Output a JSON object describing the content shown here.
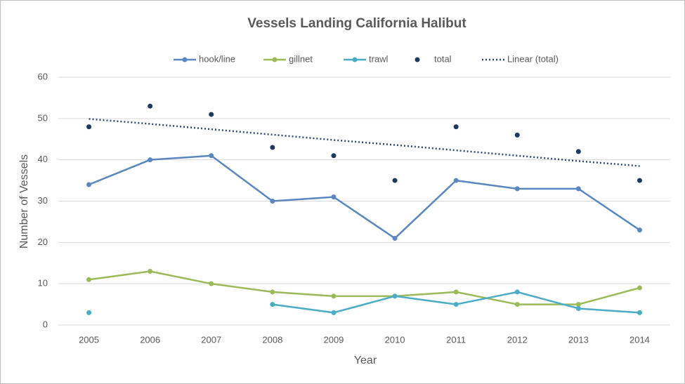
{
  "chart_data": {
    "type": "line",
    "title": "Vessels Landing California Halibut",
    "x_label": "Year",
    "y_label": "Number of Vessels",
    "categories": [
      "2005",
      "2006",
      "2007",
      "2008",
      "2009",
      "2010",
      "2011",
      "2012",
      "2013",
      "2014"
    ],
    "series": [
      {
        "name": "hook/line",
        "color": "#5b87c0",
        "line_style": "solid",
        "markers": true,
        "values": [
          34,
          40,
          41,
          30,
          31,
          21,
          35,
          33,
          33,
          23
        ]
      },
      {
        "name": "gillnet",
        "color": "#9bbb59",
        "line_style": "solid",
        "markers": true,
        "values": [
          11,
          13,
          10,
          8,
          7,
          7,
          8,
          5,
          5,
          9
        ]
      },
      {
        "name": "trawl",
        "color": "#4bacc6",
        "line_style": "solid",
        "markers": true,
        "values": [
          3,
          null,
          null,
          5,
          3,
          7,
          5,
          8,
          4,
          3
        ]
      },
      {
        "name": "total",
        "color": "#1f3a5f",
        "line_style": "none",
        "markers": true,
        "values": [
          48,
          53,
          51,
          43,
          41,
          35,
          48,
          46,
          42,
          35
        ]
      },
      {
        "name": "Linear (total)",
        "color": "#2e4a6e",
        "line_style": "dotted",
        "markers": false,
        "values": [
          49.9,
          48.7,
          47.4,
          46.1,
          44.8,
          43.6,
          42.3,
          41.0,
          39.7,
          38.5
        ]
      }
    ],
    "ylim": [
      0,
      60
    ],
    "yticks": [
      0,
      10,
      20,
      30,
      40,
      50,
      60
    ],
    "grid": true,
    "legend": "top"
  }
}
